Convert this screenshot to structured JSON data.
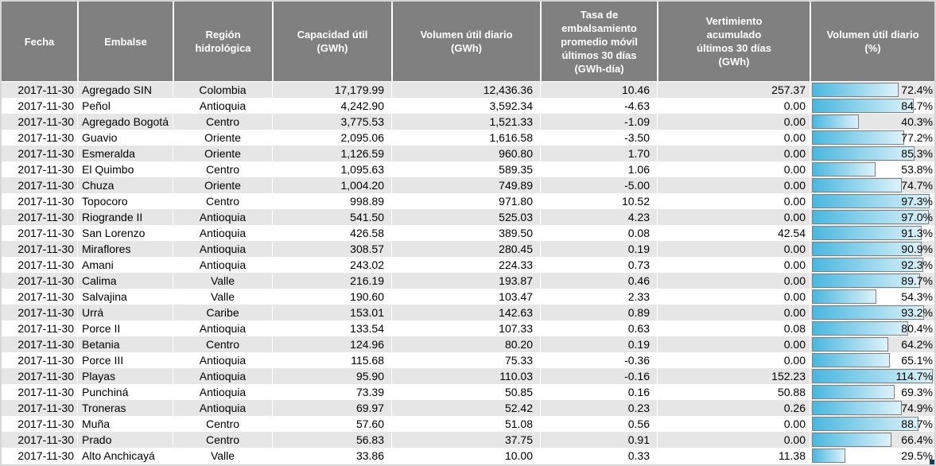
{
  "colors": {
    "header_bg": "#808080",
    "row_alt": "#e6e6e6",
    "bar_g1": "#4ab7df",
    "bar_g2": "#ddf2fa",
    "bar_border": "#7f7f7f",
    "frame": "#d6d6d6",
    "handle": "#1b3a5f"
  },
  "chart_data": {
    "type": "table",
    "columns": [
      "Fecha",
      "Embalse",
      "Región\nhidrológica",
      "Capacidad útil\n(GWh)",
      "Volumen útil diario\n(GWh)",
      "Tasa de\nembalsamiento\npromedio móvil\núltimos 30 días\n(GWh-día)",
      "Vertimiento\nacumulado\núltimos 30 días\n(GWh)",
      "Volumen útil diario\n(%)"
    ],
    "rows": [
      [
        "2017-11-30",
        "Agregado SIN",
        "Colombia",
        "17,179.99",
        "12,436.36",
        "10.46",
        "257.37",
        "72.4%"
      ],
      [
        "2017-11-30",
        "Peñol",
        "Antioquia",
        "4,242.90",
        "3,592.34",
        "-4.63",
        "0.00",
        "84.7%"
      ],
      [
        "2017-11-30",
        "Agregado Bogotá",
        "Centro",
        "3,775.53",
        "1,521.33",
        "-1.09",
        "0.00",
        "40.3%"
      ],
      [
        "2017-11-30",
        "Guavio",
        "Oriente",
        "2,095.06",
        "1,616.58",
        "-3.50",
        "0.00",
        "77.2%"
      ],
      [
        "2017-11-30",
        "Esmeralda",
        "Oriente",
        "1,126.59",
        "960.80",
        "1.70",
        "0.00",
        "85.3%"
      ],
      [
        "2017-11-30",
        "El Quimbo",
        "Centro",
        "1,095.63",
        "589.35",
        "1.06",
        "0.00",
        "53.8%"
      ],
      [
        "2017-11-30",
        "Chuza",
        "Oriente",
        "1,004.20",
        "749.89",
        "-5.00",
        "0.00",
        "74.7%"
      ],
      [
        "2017-11-30",
        "Topocoro",
        "Centro",
        "998.89",
        "971.80",
        "10.52",
        "0.00",
        "97.3%"
      ],
      [
        "2017-11-30",
        "Riogrande II",
        "Antioquia",
        "541.50",
        "525.03",
        "4.23",
        "0.00",
        "97.0%"
      ],
      [
        "2017-11-30",
        "San Lorenzo",
        "Antioquia",
        "426.58",
        "389.50",
        "0.08",
        "42.54",
        "91.3%"
      ],
      [
        "2017-11-30",
        "Miraflores",
        "Antioquia",
        "308.57",
        "280.45",
        "0.19",
        "0.00",
        "90.9%"
      ],
      [
        "2017-11-30",
        "Amani",
        "Antioquia",
        "243.02",
        "224.33",
        "0.73",
        "0.00",
        "92.3%"
      ],
      [
        "2017-11-30",
        "Calima",
        "Valle",
        "216.19",
        "193.87",
        "0.46",
        "0.00",
        "89.7%"
      ],
      [
        "2017-11-30",
        "Salvajina",
        "Valle",
        "190.60",
        "103.47",
        "2.33",
        "0.00",
        "54.3%"
      ],
      [
        "2017-11-30",
        "Urrá",
        "Caribe",
        "153.01",
        "142.63",
        "0.89",
        "0.00",
        "93.2%"
      ],
      [
        "2017-11-30",
        "Porce II",
        "Antioquia",
        "133.54",
        "107.33",
        "0.63",
        "0.08",
        "80.4%"
      ],
      [
        "2017-11-30",
        "Betania",
        "Centro",
        "124.96",
        "80.20",
        "0.19",
        "0.00",
        "64.2%"
      ],
      [
        "2017-11-30",
        "Porce III",
        "Antioquia",
        "115.68",
        "75.33",
        "-0.36",
        "0.00",
        "65.1%"
      ],
      [
        "2017-11-30",
        "Playas",
        "Antioquia",
        "95.90",
        "110.03",
        "-0.16",
        "152.23",
        "114.7%"
      ],
      [
        "2017-11-30",
        "Punchiná",
        "Antioquia",
        "73.39",
        "50.85",
        "0.16",
        "50.88",
        "69.3%"
      ],
      [
        "2017-11-30",
        "Troneras",
        "Antioquia",
        "69.97",
        "52.42",
        "0.23",
        "0.26",
        "74.9%"
      ],
      [
        "2017-11-30",
        "Muña",
        "Centro",
        "57.60",
        "51.08",
        "0.56",
        "0.00",
        "88.7%"
      ],
      [
        "2017-11-30",
        "Prado",
        "Centro",
        "56.83",
        "37.75",
        "0.91",
        "0.00",
        "66.4%"
      ],
      [
        "2017-11-30",
        "Alto Anchicayá",
        "Valle",
        "33.86",
        "10.00",
        "0.33",
        "11.38",
        "29.5%"
      ]
    ]
  }
}
